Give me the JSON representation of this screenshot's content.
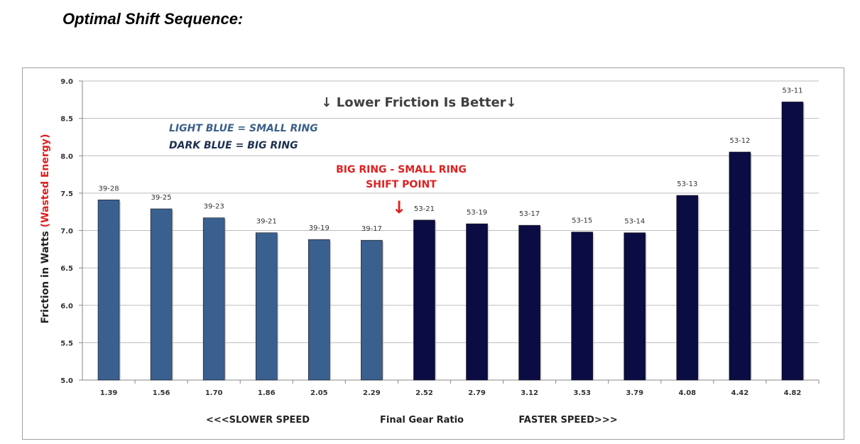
{
  "page_title": "Optimal Shift Sequence:",
  "chart_data": {
    "type": "bar",
    "title": "Lower Friction Is Better",
    "title_arrow": "↓",
    "xlabel": "Final Gear Ratio",
    "xlabel_left": "<<<SLOWER SPEED",
    "xlabel_right": "FASTER SPEED>>>",
    "ylabel": "Friction in Watts",
    "ylabel_note": "(Wasted Energy)",
    "ylim": [
      5.0,
      9.0
    ],
    "yticks": [
      "5.0",
      "5.5",
      "6.0",
      "6.5",
      "7.0",
      "7.5",
      "8.0",
      "8.5",
      "9.0"
    ],
    "grid": true,
    "categories": [
      "1.39",
      "1.56",
      "1.70",
      "1.86",
      "2.05",
      "2.29",
      "2.52",
      "2.79",
      "3.12",
      "3.53",
      "3.79",
      "4.08",
      "4.42",
      "4.82"
    ],
    "gears": [
      "39-28",
      "39-25",
      "39-23",
      "39-21",
      "39-19",
      "39-17",
      "53-21",
      "53-19",
      "53-17",
      "53-15",
      "53-14",
      "53-13",
      "53-12",
      "53-11"
    ],
    "values": [
      7.41,
      7.29,
      7.17,
      6.97,
      6.88,
      6.87,
      7.14,
      7.09,
      7.07,
      6.98,
      6.97,
      7.47,
      8.05,
      8.72
    ],
    "ring": [
      "small",
      "small",
      "small",
      "small",
      "small",
      "small",
      "big",
      "big",
      "big",
      "big",
      "big",
      "big",
      "big",
      "big"
    ],
    "legend": {
      "small": "LIGHT BLUE = SMALL RING",
      "big": "DARK BLUE = BIG RING"
    },
    "annotation": {
      "line1": "BIG RING - SMALL RING",
      "line2": "SHIFT POINT",
      "arrow": "↓"
    },
    "colors": {
      "small": "#3a6090",
      "big": "#0c0c44",
      "accent": "#e02020",
      "legend_small": "#3a5f8a",
      "legend_big": "#1e3050"
    }
  }
}
